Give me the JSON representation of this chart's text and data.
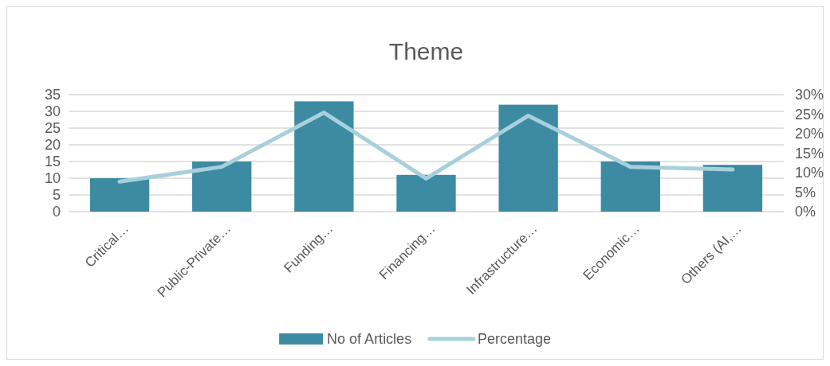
{
  "chart_data": {
    "type": "bar",
    "title": "Theme",
    "categories": [
      "Critical…",
      "Public-Private…",
      "Funding…",
      "Financing…",
      "Infrastructure…",
      "Economic…",
      "Others (AI,…"
    ],
    "series": [
      {
        "name": "No of Articles",
        "color": "#3d8ba3",
        "values": [
          10,
          15,
          33,
          11,
          32,
          15,
          14
        ]
      },
      {
        "name": "Percentage",
        "type": "line",
        "axis": "y2",
        "color": "#a8d0dc",
        "values": [
          7.7,
          11.5,
          25.4,
          8.5,
          24.6,
          11.5,
          10.8
        ]
      }
    ],
    "ylim": [
      0,
      35
    ],
    "yticks": [
      0,
      5,
      10,
      15,
      20,
      25,
      30,
      35
    ],
    "y2lim": [
      0,
      30
    ],
    "y2ticks": [
      {
        "value": 0,
        "label": "0%"
      },
      {
        "value": 5,
        "label": "5%"
      },
      {
        "value": 10,
        "label": "10%"
      },
      {
        "value": 15,
        "label": "15%"
      },
      {
        "value": 20,
        "label": "20%"
      },
      {
        "value": 25,
        "label": "25%"
      },
      {
        "value": 30,
        "label": "30%"
      }
    ],
    "grid": "y",
    "legend": "bottom",
    "marker": "none",
    "line_style": "solid"
  }
}
